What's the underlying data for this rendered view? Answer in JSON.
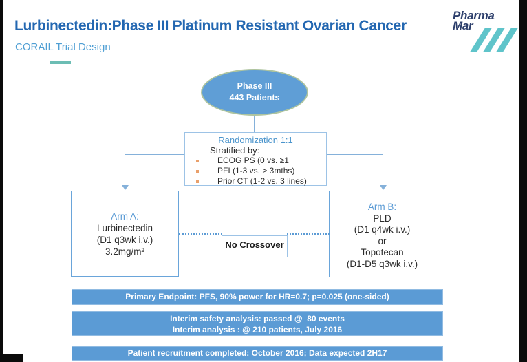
{
  "header": {
    "title": "Lurbinectedin:Phase III Platinum Resistant Ovarian Cancer",
    "subtitle": "CORAIL Trial Design",
    "logo": {
      "top": "Pharma",
      "bottom": "Mar"
    }
  },
  "diagram": {
    "ellipse": {
      "line1": "Phase III",
      "line2": "443 Patients"
    },
    "randomization": {
      "title": "Randomization 1:1",
      "intro": "Stratified by:",
      "bullets": [
        "ECOG PS (0 vs. ≥1",
        "PFI (1-3 vs. > 3mths)",
        "Prior CT (1-2 vs. 3 lines)"
      ]
    },
    "arm_a": {
      "title": "Arm A:",
      "lines": [
        "Lurbinectedin",
        "(D1 q3wk i.v.)",
        "3.2mg/m²"
      ]
    },
    "arm_b": {
      "title": "Arm B:",
      "lines": [
        "PLD",
        "(D1 q4wk i.v.)",
        "or",
        "Topotecan",
        "(D1-D5 q3wk i.v.)"
      ]
    },
    "no_crossover": "No Crossover"
  },
  "banners": {
    "primary_endpoint": {
      "line1": "Primary Endpoint: PFS, 90% power for HR=0.7; p=0.025 (one-sided)"
    },
    "interim": {
      "line1": "Interim safety analysis: passed @  80 events",
      "line2": "Interim analysis : @ 210 patients, July 2016"
    },
    "recruitment": {
      "line1": "Patient recruitment completed: October 2016; Data expected 2H17"
    }
  },
  "colors": {
    "title_blue": "#2367b1",
    "subtitle_blue": "#4f9fd4",
    "accent_blue": "#5b9bd5",
    "light_blue_border": "#9dc3e6",
    "connector_blue": "#85b1da",
    "ellipse_border_green": "#aec49f",
    "teal_dash": "#6cbdb4",
    "logo_navy": "#2c3e6b",
    "logo_teal": "#5fc4ca",
    "bullet_orange": "#e9a06b"
  }
}
